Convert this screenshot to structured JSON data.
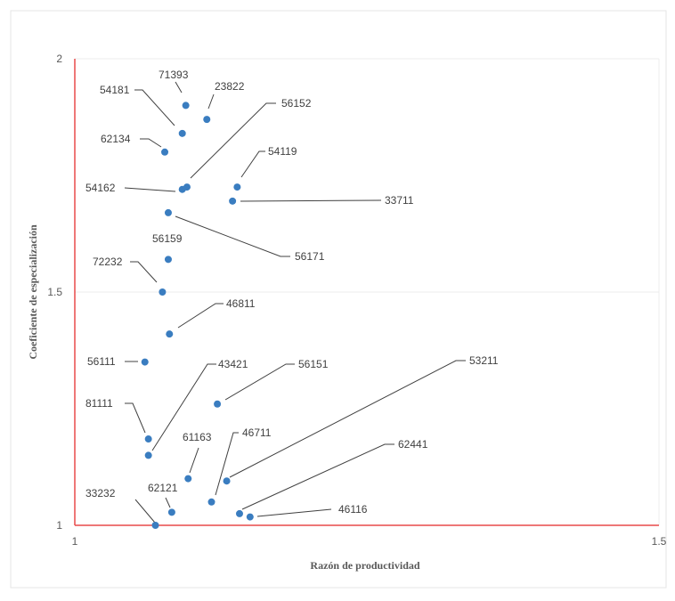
{
  "chart_data": {
    "type": "scatter",
    "title": "",
    "xlabel": "Razón de productividad",
    "ylabel": "Coeficiente de especialización",
    "xlim": [
      1,
      1.5
    ],
    "ylim": [
      1,
      2
    ],
    "x_ticks": [
      "1",
      "1.5"
    ],
    "y_ticks": [
      "1",
      "1.5",
      "2"
    ],
    "grid": true,
    "axis_color": "#e84a4a",
    "point_color": "#3a7dc0",
    "points": [
      {
        "label": "71393",
        "x": 1.095,
        "y": 1.9
      },
      {
        "label": "23822",
        "x": 1.113,
        "y": 1.87
      },
      {
        "label": "54181",
        "x": 1.092,
        "y": 1.84
      },
      {
        "label": "56152",
        "x": 1.096,
        "y": 1.725
      },
      {
        "label": "62134",
        "x": 1.077,
        "y": 1.8
      },
      {
        "label": "54119",
        "x": 1.139,
        "y": 1.725
      },
      {
        "label": "54162",
        "x": 1.092,
        "y": 1.72
      },
      {
        "label": "33711",
        "x": 1.135,
        "y": 1.695
      },
      {
        "label": "56171",
        "x": 1.08,
        "y": 1.67
      },
      {
        "label": "56159",
        "x": 1.08,
        "y": 1.57
      },
      {
        "label": "72232",
        "x": 1.075,
        "y": 1.5
      },
      {
        "label": "46811",
        "x": 1.081,
        "y": 1.41
      },
      {
        "label": "56111",
        "x": 1.06,
        "y": 1.35
      },
      {
        "label": "43421",
        "x": 1.063,
        "y": 1.15
      },
      {
        "label": "56151",
        "x": 1.122,
        "y": 1.26
      },
      {
        "label": "53211",
        "x": 1.13,
        "y": 1.095
      },
      {
        "label": "81111",
        "x": 1.063,
        "y": 1.185
      },
      {
        "label": "61163",
        "x": 1.097,
        "y": 1.1
      },
      {
        "label": "46711",
        "x": 1.117,
        "y": 1.05
      },
      {
        "label": "62441",
        "x": 1.141,
        "y": 1.025
      },
      {
        "label": "62121",
        "x": 1.083,
        "y": 1.028
      },
      {
        "label": "46116",
        "x": 1.15,
        "y": 1.018
      },
      {
        "label": "33232",
        "x": 1.069,
        "y": 1.0
      }
    ]
  }
}
